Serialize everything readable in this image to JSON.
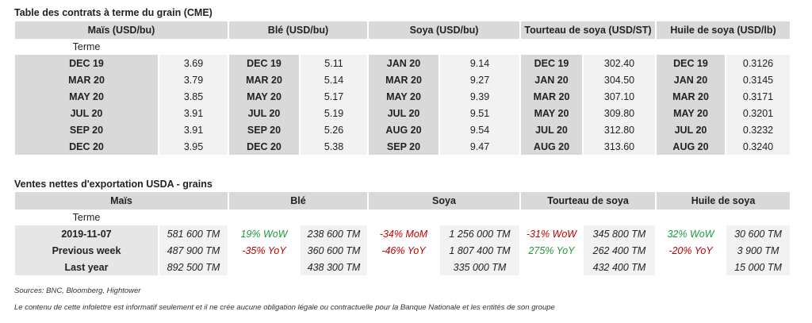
{
  "futures": {
    "title": "Table des contrats à terme du grain (CME)",
    "terme_label": "Terme",
    "columns": [
      "Maïs (USD/bu)",
      "Blé (USD/bu)",
      "Soya (USD/bu)",
      "Tourteau de soya (USD/ST)",
      "Huile de soya (USD/lb)"
    ],
    "rows": [
      [
        "DEC 19",
        "3.69",
        "DEC 19",
        "5.11",
        "JAN 20",
        "9.14",
        "DEC 19",
        "302.40",
        "DEC 19",
        "0.3126"
      ],
      [
        "MAR 20",
        "3.79",
        "MAR 20",
        "5.14",
        "MAR 20",
        "9.27",
        "JAN 20",
        "304.50",
        "JAN 20",
        "0.3145"
      ],
      [
        "MAY 20",
        "3.85",
        "MAY 20",
        "5.17",
        "MAY 20",
        "9.39",
        "MAR 20",
        "307.10",
        "MAR 20",
        "0.3171"
      ],
      [
        "JUL 20",
        "3.91",
        "JUL 20",
        "5.19",
        "JUL 20",
        "9.51",
        "MAY 20",
        "309.80",
        "MAY 20",
        "0.3201"
      ],
      [
        "SEP 20",
        "3.91",
        "SEP 20",
        "5.26",
        "AUG 20",
        "9.54",
        "JUL 20",
        "312.80",
        "JUL 20",
        "0.3232"
      ],
      [
        "DEC 20",
        "3.95",
        "DEC 20",
        "5.38",
        "SEP 20",
        "9.47",
        "AUG 20",
        "313.60",
        "AUG 20",
        "0.3240"
      ]
    ]
  },
  "exports": {
    "title": "Ventes nettes d'exportation USDA - grains",
    "terme_label": "Terme",
    "columns": [
      "Maïs",
      "Blé",
      "Soya",
      "Tourteau de soya",
      "Huile de soya"
    ],
    "rows": [
      {
        "label": "2019-11-07",
        "cells": [
          {
            "pct": "",
            "val": "581 600 TM"
          },
          {
            "pct": "19% WoW",
            "tone": "pos",
            "val": "238 600 TM"
          },
          {
            "pct": "-34% MoM",
            "tone": "neg",
            "val": "1 256 000 TM"
          },
          {
            "pct": "-31% WoW",
            "tone": "neg",
            "val": "345 800 TM"
          },
          {
            "pct": "32% WoW",
            "tone": "pos",
            "val": "30 600 TM"
          }
        ]
      },
      {
        "label": "Previous week",
        "cells": [
          {
            "pct": "",
            "val": "487 900 TM"
          },
          {
            "pct": "-35% YoY",
            "tone": "neg",
            "val": "360 600 TM"
          },
          {
            "pct": "-46% YoY",
            "tone": "neg",
            "val": "1 807 400 TM"
          },
          {
            "pct": "275% YoY",
            "tone": "pos",
            "val": "262 400 TM"
          },
          {
            "pct": "-20% YoY",
            "tone": "neg",
            "val": "3 900 TM"
          }
        ]
      },
      {
        "label": "Last year",
        "cells": [
          {
            "pct": "",
            "val": "892 500 TM"
          },
          {
            "pct": "",
            "val": "438 300 TM"
          },
          {
            "pct": "",
            "val": "335 000 TM"
          },
          {
            "pct": "",
            "val": "432 400 TM"
          },
          {
            "pct": "",
            "val": "15 000 TM"
          }
        ]
      }
    ]
  },
  "sources": "Sources: BNC, Bloomberg, Hightower",
  "disclaimer": "Le contenu de cette infolettre est informatif seulement et il ne crée aucune obligation légale ou contractuelle pour la Banque Nationale et les entités de son groupe",
  "colors": {
    "header_bg": "#d9d9d9",
    "value_bg": "#f2f2f2",
    "negative": "#c00000",
    "positive": "#1a9b3c"
  }
}
